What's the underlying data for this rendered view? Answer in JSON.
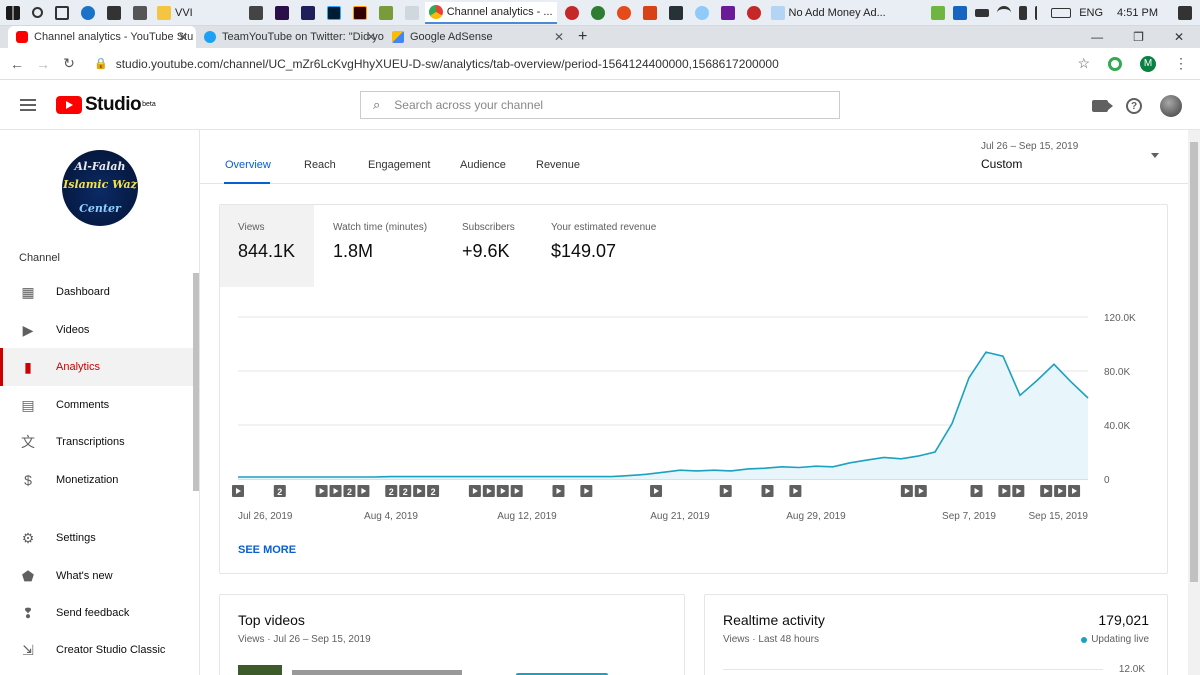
{
  "taskbar": {
    "apps": [
      {
        "label": "VVI",
        "active": false
      },
      {
        "label": "Channel analytics - ...",
        "active": true
      },
      {
        "label": "No Add Money Ad...",
        "active": false
      }
    ],
    "lang": "ENG",
    "time": "4:51 PM"
  },
  "browser": {
    "tabs": [
      {
        "title": "Channel analytics - YouTube Stu",
        "icon": "youtube-icon",
        "active": true
      },
      {
        "title": "TeamYouTube on Twitter: \"Did yo",
        "icon": "twitter-icon",
        "active": false
      },
      {
        "title": "Google AdSense",
        "icon": "adsense-icon",
        "active": false
      }
    ],
    "url": "studio.youtube.com/channel/UC_mZr6LcKvgHhyXUEU-D-sw/analytics/tab-overview/period-1564124400000,1568617200000",
    "profile_initial": "M"
  },
  "studio": {
    "logo_text": "Studio",
    "logo_sup": "beta",
    "search_placeholder": "Search across your channel"
  },
  "sidebar": {
    "channel_avatar": {
      "line1": "Al-Falah",
      "line2": "Islamic Waz",
      "line3": "Center"
    },
    "section_label": "Channel",
    "items": [
      {
        "label": "Dashboard",
        "icon": "dashboard-icon",
        "active": false
      },
      {
        "label": "Videos",
        "icon": "videos-icon",
        "active": false
      },
      {
        "label": "Analytics",
        "icon": "analytics-icon",
        "active": true
      },
      {
        "label": "Comments",
        "icon": "comments-icon",
        "active": false
      },
      {
        "label": "Transcriptions",
        "icon": "translate-icon",
        "active": false
      },
      {
        "label": "Monetization",
        "icon": "dollar-icon",
        "active": false
      }
    ],
    "bottom_items": [
      {
        "label": "Settings",
        "icon": "gear-icon"
      },
      {
        "label": "What's new",
        "icon": "alert-icon"
      },
      {
        "label": "Send feedback",
        "icon": "feedback-icon"
      },
      {
        "label": "Creator Studio Classic",
        "icon": "classic-icon"
      }
    ]
  },
  "analytics": {
    "tabs": [
      "Overview",
      "Reach",
      "Engagement",
      "Audience",
      "Revenue"
    ],
    "active_tab": "Overview",
    "date_range": "Jul 26 – Sep 15, 2019",
    "date_preset": "Custom",
    "metrics": [
      {
        "label": "Views",
        "value": "844.1K",
        "selected": true
      },
      {
        "label": "Watch time (minutes)",
        "value": "1.8M",
        "selected": false
      },
      {
        "label": "Subscribers",
        "value": "+9.6K",
        "selected": false
      },
      {
        "label": "Your estimated revenue",
        "value": "$149.07",
        "selected": false
      }
    ],
    "see_more": "SEE MORE"
  },
  "chart_data": {
    "type": "area",
    "series": [
      {
        "values": [
          1500,
          1500,
          1500,
          1500,
          1500,
          1500,
          1500,
          1500,
          1500,
          1800,
          1800,
          1800,
          1800,
          1800,
          1800,
          1800,
          1800,
          1800,
          1800,
          1800,
          1800,
          1800,
          1800,
          2500,
          3500,
          5000,
          6500,
          6000,
          6500,
          6000,
          7500,
          8000,
          9000,
          8500,
          9500,
          9000,
          12000,
          14000,
          16000,
          15000,
          17000,
          20000,
          41000,
          75000,
          94000,
          91000,
          62000,
          73000,
          85000,
          72000,
          60000
        ]
      }
    ],
    "x_start": "Jul 26, 2019",
    "x_end": "Sep 15, 2019",
    "x_ticks": [
      "Jul 26, 2019",
      "Aug 4, 2019",
      "Aug 12, 2019",
      "Aug 21, 2019",
      "Aug 29, 2019",
      "Sep 7, 2019",
      "Sep 15, 2019"
    ],
    "x_tick_index": [
      0,
      9,
      17,
      26,
      34,
      43,
      50
    ],
    "y_ticks": [
      "120.0K",
      "80.0K",
      "40.0K",
      "0"
    ],
    "ylim": [
      0,
      120000
    ],
    "grid": true,
    "color": "#1ca1c1",
    "fill": "#e8f5fa",
    "markers": [
      {
        "type": "play",
        "day": 0
      },
      {
        "type": "num",
        "label": "2",
        "day": 3
      },
      {
        "type": "play",
        "day": 6
      },
      {
        "type": "play",
        "day": 7
      },
      {
        "type": "num",
        "label": "2",
        "day": 8
      },
      {
        "type": "play",
        "day": 9
      },
      {
        "type": "num",
        "label": "2",
        "day": 11
      },
      {
        "type": "num",
        "label": "2",
        "day": 12
      },
      {
        "type": "play",
        "day": 13
      },
      {
        "type": "num",
        "label": "2",
        "day": 14
      },
      {
        "type": "play",
        "day": 17
      },
      {
        "type": "play",
        "day": 18
      },
      {
        "type": "play",
        "day": 19
      },
      {
        "type": "play",
        "day": 20
      },
      {
        "type": "play",
        "day": 23
      },
      {
        "type": "play",
        "day": 25
      },
      {
        "type": "play",
        "day": 30
      },
      {
        "type": "play",
        "day": 35
      },
      {
        "type": "play",
        "day": 38
      },
      {
        "type": "play",
        "day": 40
      },
      {
        "type": "play",
        "day": 48
      },
      {
        "type": "play",
        "day": 49
      },
      {
        "type": "play",
        "day": 53
      },
      {
        "type": "play",
        "day": 55
      },
      {
        "type": "play",
        "day": 56
      },
      {
        "type": "play",
        "day": 58
      },
      {
        "type": "play",
        "day": 59
      },
      {
        "type": "play",
        "day": 60
      }
    ]
  },
  "bottom_cards": {
    "top_videos": {
      "title": "Top videos",
      "subtitle": "Views · Jul 26 – Sep 15, 2019"
    },
    "realtime": {
      "title": "Realtime activity",
      "count": "179,021",
      "subtitle": "Views · Last 48 hours",
      "status": "Updating live",
      "axis_top": "12.0K"
    }
  }
}
